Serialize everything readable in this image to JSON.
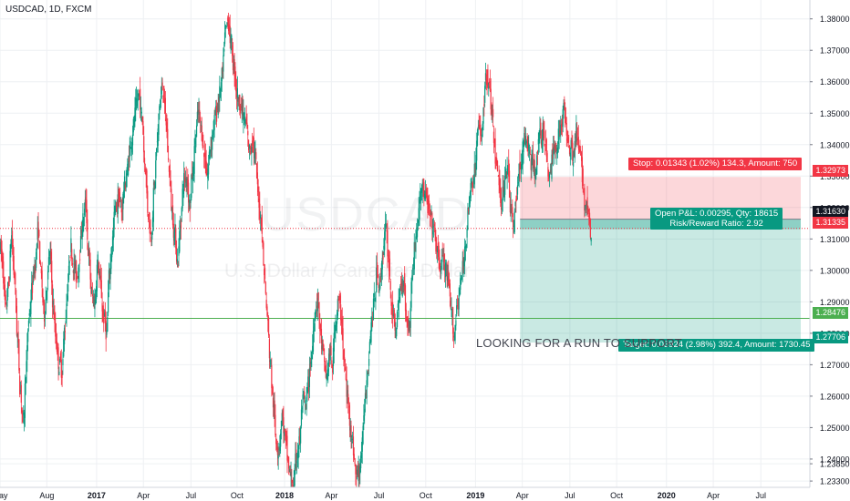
{
  "chart_data": {
    "type": "candlestick",
    "symbol_label": "USDCAD, 1D, FXCM",
    "watermark_symbol": "USDCAD",
    "watermark_description": "U.S. Dollar / Canadian Dollar",
    "y_axis": {
      "min": 1.231,
      "max": 1.386,
      "ticks": [
        "1.38000",
        "1.37000",
        "1.36000",
        "1.35000",
        "1.34000",
        "1.33000",
        "1.32000",
        "1.31000",
        "1.30000",
        "1.29000",
        "1.28000",
        "1.27000",
        "1.26000",
        "1.25000",
        "1.24000",
        "1.23850",
        "1.23300"
      ],
      "tick_values": [
        1.38,
        1.37,
        1.36,
        1.35,
        1.34,
        1.33,
        1.32,
        1.31,
        1.3,
        1.29,
        1.28,
        1.27,
        1.26,
        1.25,
        1.24,
        1.2385,
        1.233
      ]
    },
    "x_axis": {
      "ticks": [
        "May",
        "Aug",
        "2017",
        "Apr",
        "Jul",
        "Oct",
        "2018",
        "Apr",
        "Jul",
        "Oct",
        "2019",
        "Apr",
        "Jul",
        "Oct",
        "2020",
        "Apr",
        "Jul"
      ],
      "tick_bold": [
        false,
        false,
        true,
        false,
        false,
        false,
        true,
        false,
        false,
        false,
        true,
        false,
        false,
        false,
        true,
        false,
        false
      ],
      "tick_index": [
        0,
        63,
        130,
        193,
        257,
        319,
        383,
        446,
        510,
        573,
        640,
        703,
        767,
        830,
        897,
        960,
        1024
      ]
    },
    "series_close": [
      1.302,
      1.288,
      1.295,
      1.311,
      1.298,
      1.279,
      1.262,
      1.252,
      1.27,
      1.286,
      1.295,
      1.302,
      1.312,
      1.298,
      1.286,
      1.296,
      1.305,
      1.289,
      1.278,
      1.27,
      1.268,
      1.282,
      1.296,
      1.308,
      1.302,
      1.298,
      1.306,
      1.316,
      1.321,
      1.305,
      1.292,
      1.29,
      1.303,
      1.295,
      1.285,
      1.28,
      1.299,
      1.31,
      1.32,
      1.323,
      1.319,
      1.327,
      1.332,
      1.34,
      1.346,
      1.352,
      1.356,
      1.348,
      1.333,
      1.318,
      1.311,
      1.326,
      1.34,
      1.354,
      1.358,
      1.347,
      1.333,
      1.319,
      1.312,
      1.303,
      1.316,
      1.329,
      1.33,
      1.321,
      1.331,
      1.343,
      1.35,
      1.344,
      1.336,
      1.331,
      1.34,
      1.346,
      1.35,
      1.356,
      1.362,
      1.376,
      1.379,
      1.372,
      1.364,
      1.356,
      1.353,
      1.349,
      1.346,
      1.338,
      1.342,
      1.336,
      1.324,
      1.317,
      1.3,
      1.286,
      1.272,
      1.258,
      1.246,
      1.244,
      1.254,
      1.247,
      1.239,
      1.234,
      1.232,
      1.241,
      1.246,
      1.258,
      1.256,
      1.264,
      1.273,
      1.286,
      1.291,
      1.28,
      1.272,
      1.266,
      1.273,
      1.269,
      1.284,
      1.29,
      1.285,
      1.27,
      1.26,
      1.252,
      1.243,
      1.234,
      1.236,
      1.244,
      1.26,
      1.271,
      1.283,
      1.29,
      1.3,
      1.296,
      1.306,
      1.313,
      1.302,
      1.288,
      1.281,
      1.287,
      1.295,
      1.298,
      1.284,
      1.283,
      1.301,
      1.31,
      1.318,
      1.327,
      1.324,
      1.32,
      1.316,
      1.313,
      1.307,
      1.301,
      1.304,
      1.3,
      1.295,
      1.286,
      1.279,
      1.29,
      1.295,
      1.301,
      1.311,
      1.321,
      1.328,
      1.332,
      1.345,
      1.342,
      1.354,
      1.362,
      1.357,
      1.346,
      1.335,
      1.328,
      1.322,
      1.329,
      1.334,
      1.32,
      1.313,
      1.325,
      1.332,
      1.338,
      1.342,
      1.339,
      1.334,
      1.331,
      1.339,
      1.342,
      1.345,
      1.337,
      1.33,
      1.336,
      1.339,
      1.343,
      1.347,
      1.351,
      1.344,
      1.34,
      1.337,
      1.344,
      1.338,
      1.331,
      1.321,
      1.318,
      1.31
    ],
    "series_start": 1.308,
    "last_price": "1.31335",
    "horizontal_line": {
      "value": 1.28476,
      "label": "1.28476"
    },
    "position": {
      "type": "long",
      "entry": 1.3163,
      "stop": 1.32973,
      "target": 1.27706,
      "entry_label": "1.31630",
      "stop_label": "1.32973",
      "target_label": "1.27706",
      "stop_text": "Stop: 0.01343 (1.02%) 134.3, Amount: 750",
      "open_text": "Open P&L: 0.00295, Qty: 18615",
      "rr_text": "Risk/Reward Ratio: 2.92",
      "target_text": "Target: 0.03924 (2.98%) 392.4, Amount: 1730.45"
    },
    "annotation": "LOOKING FOR A RUN TO SUPPORT",
    "colors": {
      "up": "#089981",
      "down": "#f23645",
      "stop_zone": "rgba(242,54,69,0.20)",
      "target_zone": "rgba(8,153,129,0.22)",
      "hline": "#4caf50",
      "grid": "#eef0f3"
    }
  }
}
